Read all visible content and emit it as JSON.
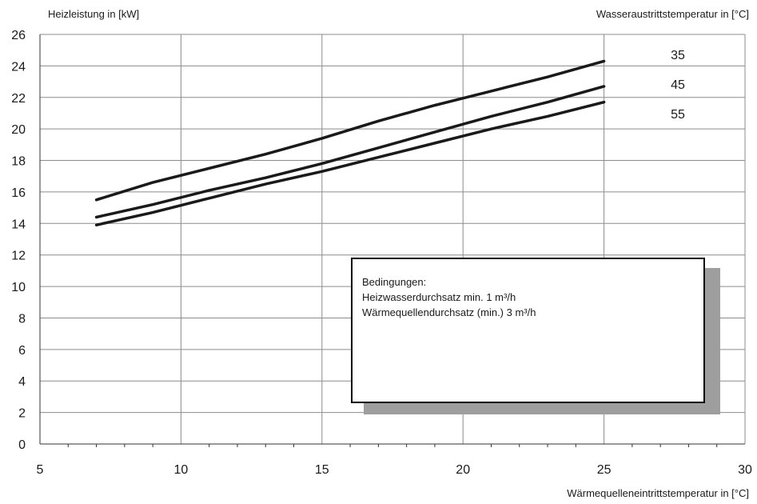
{
  "header": {
    "ylabel": "Heizleistung in [kW]",
    "legend_title": "Wasseraustrittstemperatur in [°C]",
    "xlabel": "Wärmequelleneintrittstemperatur in [°C]"
  },
  "note": {
    "line1": "Bedingungen:",
    "line2": "Heizwasserdurchsatz min. 1 m³/h",
    "line3": "Wärmequellendurchsatz (min.) 3 m³/h"
  },
  "colors": {
    "line": "#1a1a1a",
    "grid": "#8c8c8c",
    "shadow": "#9e9e9e"
  },
  "chart_data": {
    "type": "line",
    "title": "",
    "xlabel": "Wärmequelleneintrittstemperatur in [°C]",
    "ylabel": "Heizleistung in [kW]",
    "xlim": [
      5,
      30
    ],
    "ylim": [
      0,
      26
    ],
    "xticks": [
      5,
      10,
      15,
      20,
      25,
      30
    ],
    "yticks": [
      0,
      2,
      4,
      6,
      8,
      10,
      12,
      14,
      16,
      18,
      20,
      22,
      24,
      26
    ],
    "grid": true,
    "legend": "top-right",
    "series": [
      {
        "name": "35",
        "x": [
          7,
          9,
          11,
          13,
          15,
          17,
          19,
          21,
          23,
          25
        ],
        "y": [
          15.5,
          16.6,
          17.5,
          18.4,
          19.4,
          20.5,
          21.5,
          22.4,
          23.3,
          24.3
        ]
      },
      {
        "name": "45",
        "x": [
          7,
          9,
          11,
          13,
          15,
          17,
          19,
          21,
          23,
          25
        ],
        "y": [
          14.4,
          15.2,
          16.1,
          16.9,
          17.8,
          18.8,
          19.8,
          20.8,
          21.7,
          22.7
        ]
      },
      {
        "name": "55",
        "x": [
          7,
          9,
          11,
          13,
          15,
          17,
          19,
          21,
          23,
          25
        ],
        "y": [
          13.9,
          14.7,
          15.6,
          16.5,
          17.3,
          18.2,
          19.1,
          20.0,
          20.8,
          21.7
        ]
      }
    ]
  }
}
